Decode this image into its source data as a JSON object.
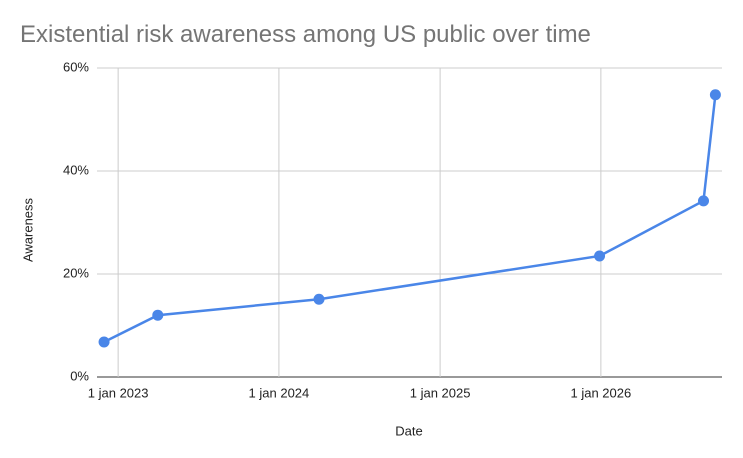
{
  "chart_data": {
    "type": "line",
    "title": "Existential risk awareness among US public over time",
    "x_label": "Date",
    "y_label": "Awareness",
    "x": [
      "2022-11-30",
      "2023-04-01",
      "2024-04-01",
      "2025-12-29",
      "2026-08-22",
      "2026-09-18"
    ],
    "values": [
      6.8,
      12.0,
      15.1,
      23.5,
      34.2,
      54.8
    ],
    "color": "#4a86e8",
    "xlim": [
      "2022-11-14",
      "2026-10-03"
    ],
    "xticks": [
      {
        "value": "2023-01-01",
        "label": "1 jan 2023"
      },
      {
        "value": "2024-01-01",
        "label": "1 jan 2024"
      },
      {
        "value": "2025-01-01",
        "label": "1 jan 2025"
      },
      {
        "value": "2026-01-01",
        "label": "1 jan 2026"
      }
    ],
    "ylim": [
      0,
      60
    ],
    "yticks": [
      {
        "value": 0,
        "label": "0%"
      },
      {
        "value": 20,
        "label": "20%"
      },
      {
        "value": 40,
        "label": "40%"
      },
      {
        "value": 60,
        "label": "60%"
      }
    ],
    "grid": true
  }
}
